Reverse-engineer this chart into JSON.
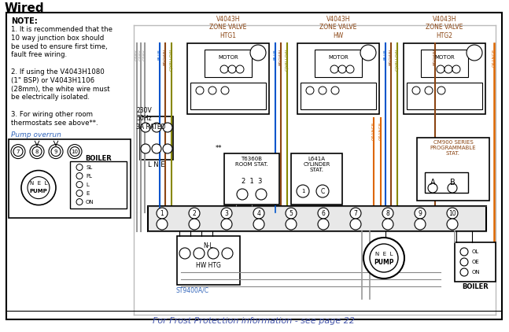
{
  "title": "Wired",
  "bg_color": "#ffffff",
  "frost_text": "For Frost Protection information - see page 22",
  "frost_color": "#4455aa",
  "zone_label_color": "#8B4513",
  "zone_labels": [
    "V4043H\nZONE VALVE\nHTG1",
    "V4043H\nZONE VALVE\nHW",
    "V4043H\nZONE VALVE\nHTG2"
  ],
  "note_lines": [
    "NOTE:",
    "1. It is recommended that the",
    "10 way junction box should",
    "be used to ensure first time,",
    "fault free wiring.",
    " ",
    "2. If using the V4043H1080",
    "(1\" BSP) or V4043H1106",
    "(28mm), the white wire must",
    "be electrically isolated.",
    " ",
    "3. For wiring other room",
    "thermostats see above**."
  ],
  "wire_colors": {
    "grey": "#999999",
    "blue": "#0055cc",
    "brown": "#8B4513",
    "gyellow": "#888800",
    "orange": "#dd6600",
    "black": "#000000"
  },
  "term_nums": [
    "1",
    "2",
    "3",
    "4",
    "5",
    "6",
    "7",
    "8",
    "9",
    "10"
  ]
}
